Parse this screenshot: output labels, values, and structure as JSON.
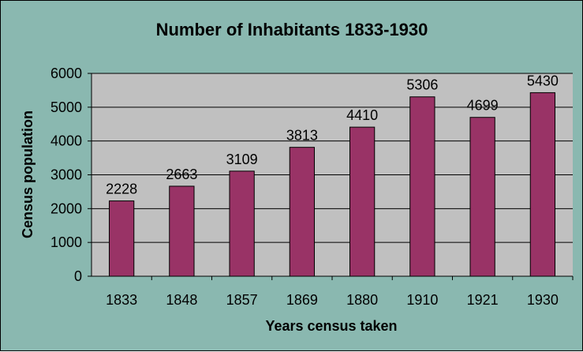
{
  "chart_data": {
    "type": "bar",
    "title": "Number of Inhabitants 1833-1930",
    "xlabel": "Years census taken",
    "ylabel": "Census population",
    "categories": [
      "1833",
      "1848",
      "1857",
      "1869",
      "1880",
      "1910",
      "1921",
      "1930"
    ],
    "values": [
      2228,
      2663,
      3109,
      3813,
      4410,
      5306,
      4699,
      5430
    ],
    "ylim": [
      0,
      6000
    ],
    "yticks": [
      0,
      1000,
      2000,
      3000,
      4000,
      5000,
      6000
    ],
    "grid": true,
    "legend": false,
    "colors": {
      "background": "#8ab8b0",
      "plot_area": "#c0c0c0",
      "bar": "#993366",
      "gridline": "#000000"
    }
  }
}
